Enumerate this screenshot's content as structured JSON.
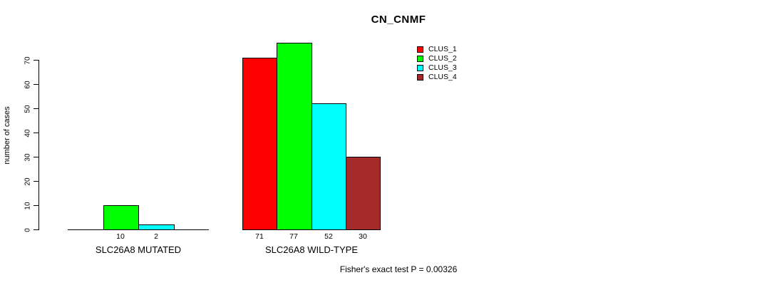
{
  "title": "CN_CNMF",
  "y_axis": {
    "label": "number of cases",
    "ticks": [
      0,
      10,
      20,
      30,
      40,
      50,
      60,
      70
    ]
  },
  "legend": {
    "items": [
      {
        "label": "CLUS_1",
        "color": "#FF0000"
      },
      {
        "label": "CLUS_2",
        "color": "#00FF00"
      },
      {
        "label": "CLUS_3",
        "color": "#00FFFF"
      },
      {
        "label": "CLUS_4",
        "color": "#A52A2A"
      }
    ]
  },
  "annotation": "Fisher's exact test P = 0.00326",
  "chart_data": {
    "type": "bar",
    "title": "CN_CNMF",
    "ylabel": "number of cases",
    "ylim": [
      0,
      70
    ],
    "yticks": [
      0,
      10,
      20,
      30,
      40,
      50,
      60,
      70
    ],
    "grid": false,
    "legend_position": "top-right",
    "categories": [
      "SLC26A8 MUTATED",
      "SLC26A8 WILD-TYPE"
    ],
    "series": [
      {
        "name": "CLUS_1",
        "color": "#FF0000",
        "values": [
          0,
          71
        ]
      },
      {
        "name": "CLUS_2",
        "color": "#00FF00",
        "values": [
          10,
          77
        ]
      },
      {
        "name": "CLUS_3",
        "color": "#00FFFF",
        "values": [
          2,
          52
        ]
      },
      {
        "name": "CLUS_4",
        "color": "#A52A2A",
        "values": [
          0,
          30
        ]
      }
    ],
    "bar_count_labels": [
      [
        "",
        "10",
        "2",
        ""
      ],
      [
        "71",
        "77",
        "52",
        "30"
      ]
    ],
    "zero_value_bars_hidden": true,
    "annotation": "Fisher's exact test P = 0.00326"
  }
}
